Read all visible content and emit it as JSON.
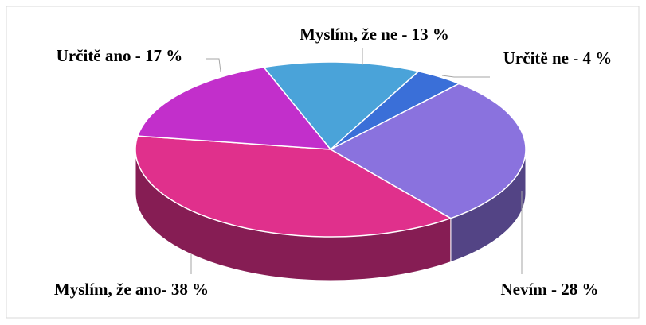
{
  "chart_data": {
    "type": "pie",
    "values": [
      13,
      4,
      28,
      38,
      17
    ],
    "value_labels": [
      "Myslím, že ne - 13 %",
      "Určitě ne - 4 %",
      "Nevím - 28 %",
      "Myslím, že ano- 38 %",
      "Určitě ano - 17 %"
    ],
    "colors": [
      "#4aa3d9",
      "#3a6fd8",
      "#8a72de",
      "#e0308c",
      "#c22fcb"
    ]
  }
}
